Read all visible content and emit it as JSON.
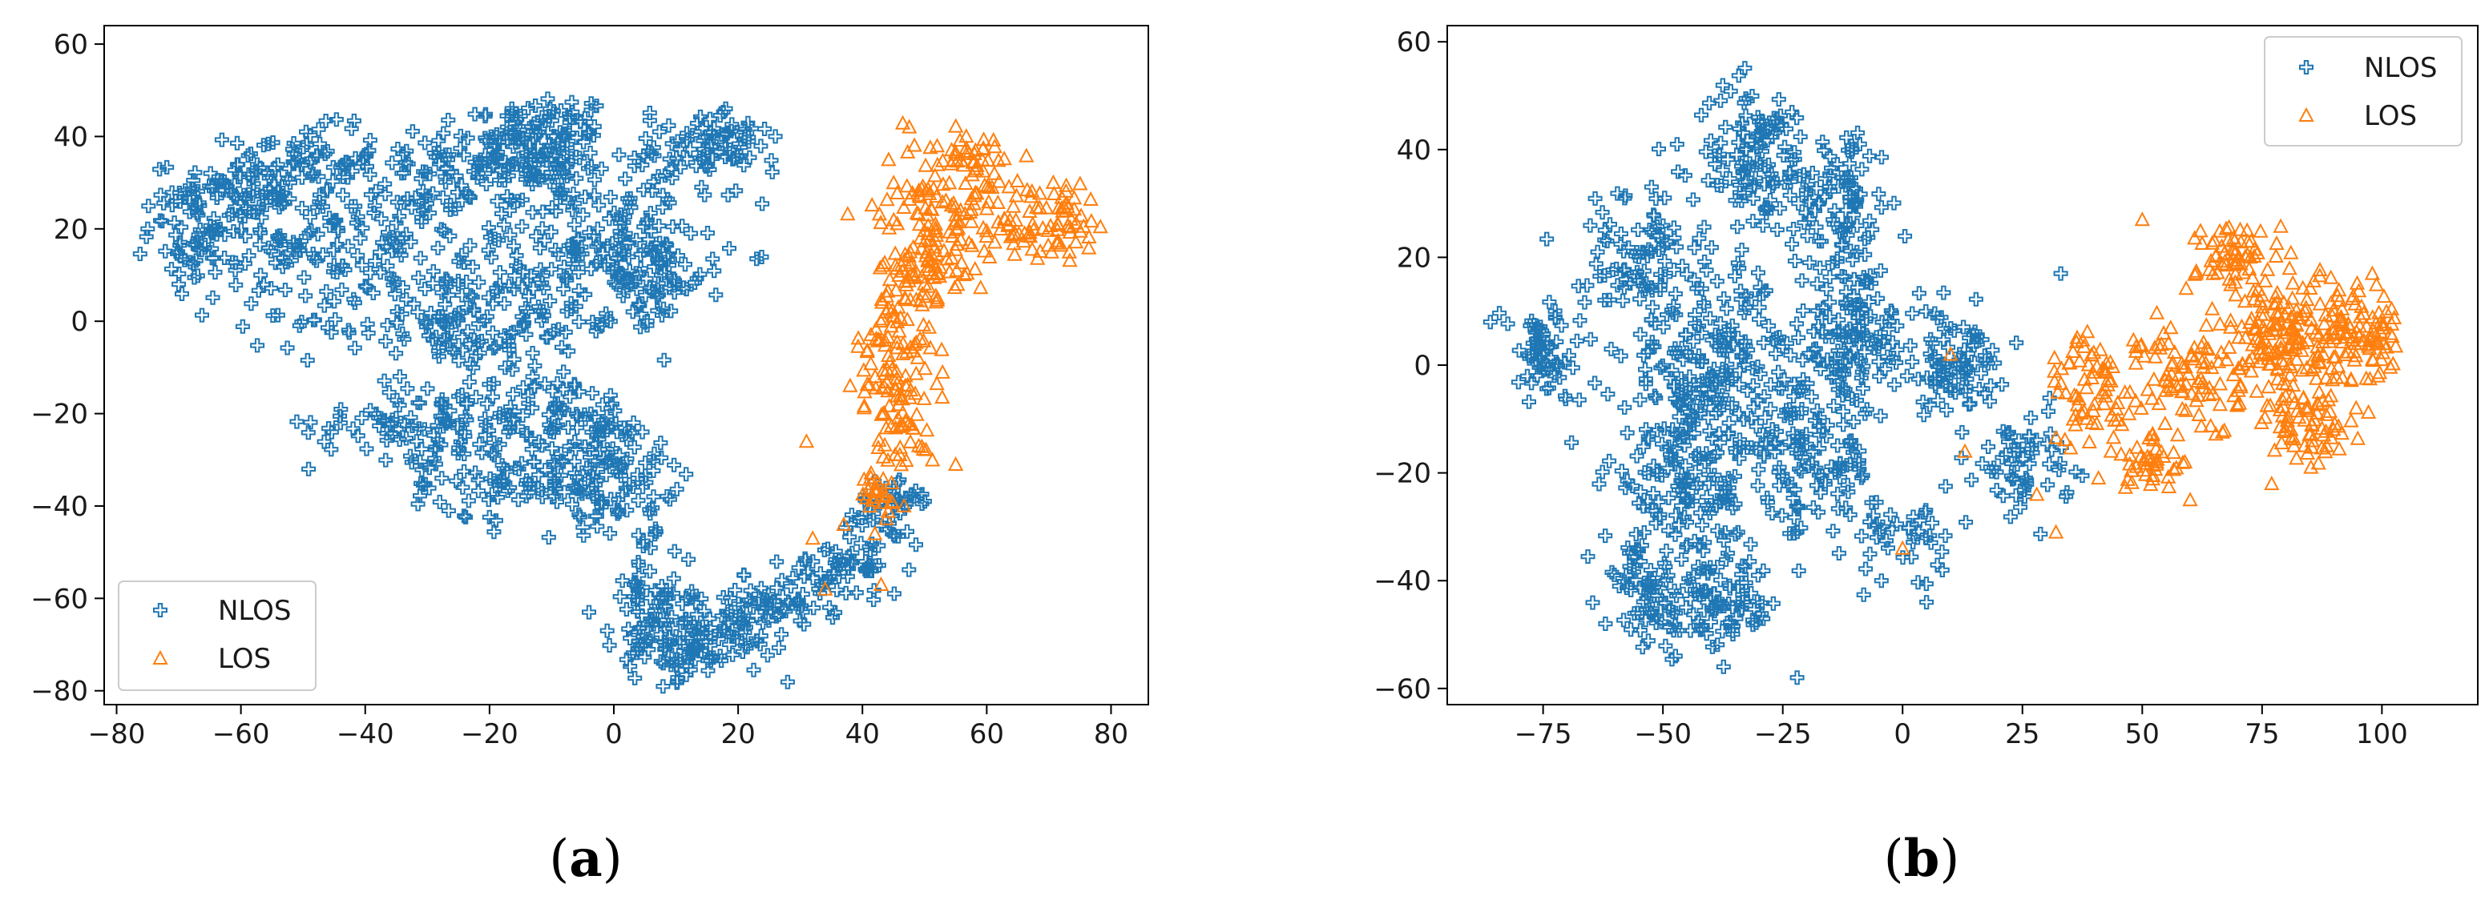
{
  "colors": {
    "nlos": "#1f77b4",
    "los": "#ff7f0e",
    "axis": "#000000",
    "text": "#1a1a1a",
    "legend_border": "#cccccc"
  },
  "marker_names": {
    "NLOS": "plus-outline",
    "LOS": "triangle-outline"
  },
  "chart_data": [
    {
      "type": "scatter",
      "panel": "a",
      "caption_letter": "a",
      "caption_open": "(",
      "caption_close": ")",
      "title": "",
      "xlabel": "",
      "ylabel": "",
      "xlim": [
        -82,
        86
      ],
      "ylim": [
        -83,
        64
      ],
      "xticks": [
        -80,
        -60,
        -40,
        -20,
        0,
        20,
        40,
        60,
        80
      ],
      "xtick_labels": [
        "−80",
        "−60",
        "−40",
        "−20",
        "0",
        "20",
        "40",
        "60",
        "80"
      ],
      "yticks": [
        -80,
        -60,
        -40,
        -20,
        0,
        20,
        40,
        60
      ],
      "ytick_labels": [
        "−80",
        "−60",
        "−40",
        "−20",
        "0",
        "20",
        "40",
        "60"
      ],
      "grid": false,
      "legend_position": "lower-left",
      "series": [
        {
          "name": "NLOS",
          "marker": "plus-outline",
          "clusters": [
            [
              -10,
              38,
              8,
              10,
              90
            ],
            [
              -20,
              35,
              15,
              11,
              120
            ],
            [
              -50,
              35,
              10,
              6,
              60
            ],
            [
              -45,
              18,
              20,
              12,
              160
            ],
            [
              -65,
              18,
              8,
              8,
              50
            ],
            [
              -60,
              28,
              12,
              5,
              60
            ],
            [
              -5,
              15,
              16,
              13,
              150
            ],
            [
              5,
              10,
              10,
              8,
              60
            ],
            [
              12,
              35,
              10,
              7,
              60
            ],
            [
              18,
              40,
              6,
              4,
              30
            ],
            [
              -25,
              0,
              22,
              9,
              140
            ],
            [
              -12,
              -20,
              15,
              8,
              80
            ],
            [
              -2,
              -28,
              12,
              6,
              60
            ],
            [
              -32,
              -22,
              14,
              7,
              80
            ],
            [
              -18,
              -35,
              12,
              6,
              60
            ],
            [
              0,
              -38,
              10,
              6,
              60
            ],
            [
              6,
              -60,
              6,
              10,
              60
            ],
            [
              10,
              -72,
              8,
              5,
              60
            ],
            [
              18,
              -66,
              8,
              7,
              60
            ],
            [
              28,
              -60,
              8,
              6,
              50
            ],
            [
              38,
              -54,
              8,
              5,
              40
            ],
            [
              42,
              -44,
              6,
              6,
              30
            ],
            [
              46,
              -38,
              5,
              4,
              20
            ]
          ],
          "outliers": [
            [
              -4,
              -63
            ],
            [
              26,
              40
            ],
            [
              18,
              46
            ],
            [
              -70,
              8
            ],
            [
              -75,
              20
            ]
          ]
        },
        {
          "name": "LOS",
          "marker": "triangle-outline",
          "clusters": [
            [
              52,
              25,
              8,
              12,
              100
            ],
            [
              66,
              22,
              7,
              8,
              60
            ],
            [
              73,
              23,
              4,
              7,
              30
            ],
            [
              58,
              36,
              5,
              5,
              30
            ],
            [
              49,
              8,
              5,
              12,
              80
            ],
            [
              45,
              -8,
              5,
              12,
              70
            ],
            [
              47,
              -22,
              4,
              8,
              40
            ],
            [
              42,
              -38,
              4,
              5,
              25
            ]
          ],
          "outliers": [
            [
              31,
              -26
            ],
            [
              32,
              -47
            ],
            [
              34,
              -58
            ],
            [
              43,
              -57
            ],
            [
              37,
              -44
            ],
            [
              55,
              -31
            ],
            [
              42,
              -46
            ]
          ]
        }
      ]
    },
    {
      "type": "scatter",
      "panel": "b",
      "caption_letter": "b",
      "caption_open": "(",
      "caption_close": ")",
      "title": "",
      "xlabel": "",
      "ylabel": "",
      "xlim": [
        -95,
        120
      ],
      "ylim": [
        -63,
        63
      ],
      "xticks": [
        -75,
        -50,
        -25,
        0,
        25,
        50,
        75,
        100
      ],
      "xtick_labels": [
        "−75",
        "−50",
        "−25",
        "0",
        "25",
        "50",
        "75",
        "100"
      ],
      "yticks": [
        -60,
        -40,
        -20,
        0,
        20,
        40,
        60
      ],
      "ytick_labels": [
        "−60",
        "−40",
        "−20",
        "0",
        "20",
        "40",
        "60"
      ],
      "grid": false,
      "legend_position": "upper-right",
      "series": [
        {
          "name": "NLOS",
          "marker": "plus-outline",
          "clusters": [
            [
              -30,
              38,
              11,
              12,
              120
            ],
            [
              -12,
              30,
              8,
              12,
              80
            ],
            [
              -55,
              20,
              10,
              12,
              90
            ],
            [
              -75,
              2,
              7,
              8,
              60
            ],
            [
              -40,
              0,
              16,
              14,
              180
            ],
            [
              -10,
              5,
              12,
              12,
              120
            ],
            [
              -45,
              -22,
              14,
              12,
              140
            ],
            [
              -20,
              -18,
              12,
              12,
              120
            ],
            [
              -40,
              -45,
              12,
              7,
              100
            ],
            [
              -55,
              -40,
              6,
              6,
              40
            ],
            [
              10,
              0,
              10,
              8,
              80
            ],
            [
              25,
              -18,
              8,
              8,
              60
            ],
            [
              0,
              -32,
              8,
              6,
              40
            ]
          ],
          "outliers": [
            [
              -22,
              -58
            ],
            [
              33,
              17
            ],
            [
              -86,
              8
            ],
            [
              -62,
              -48
            ],
            [
              5,
              -44
            ]
          ]
        },
        {
          "name": "LOS",
          "marker": "triangle-outline",
          "clusters": [
            [
              80,
              5,
              11,
              11,
              180
            ],
            [
              70,
              20,
              7,
              6,
              60
            ],
            [
              95,
              5,
              6,
              7,
              60
            ],
            [
              60,
              -2,
              9,
              10,
              90
            ],
            [
              40,
              -5,
              8,
              9,
              70
            ],
            [
              52,
              -18,
              7,
              4,
              40
            ],
            [
              85,
              -12,
              8,
              5,
              50
            ],
            [
              100,
              5,
              3,
              6,
              20
            ]
          ],
          "outliers": [
            [
              0,
              -34
            ],
            [
              13,
              -16
            ],
            [
              10,
              2
            ],
            [
              28,
              -24
            ],
            [
              32,
              -31
            ],
            [
              50,
              27
            ],
            [
              60,
              -25
            ],
            [
              77,
              -22
            ],
            [
              98,
              17
            ]
          ]
        }
      ]
    }
  ]
}
